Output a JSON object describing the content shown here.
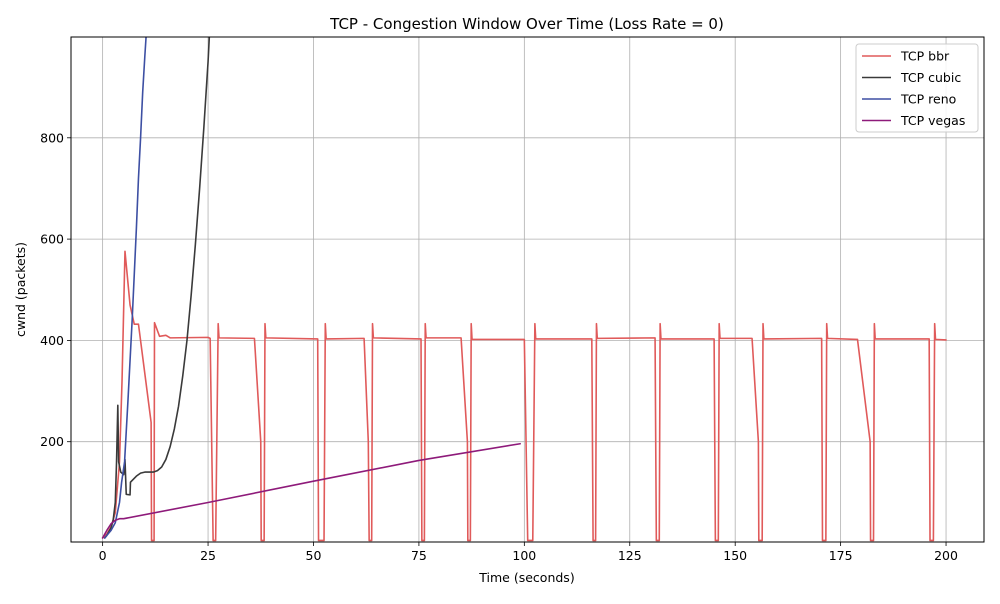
{
  "chart_data": {
    "type": "line",
    "title": "TCP - Congestion Window Over Time (Loss Rate = 0)",
    "xlabel": "Time (seconds)",
    "ylabel": "cwnd (packets)",
    "xlim": [
      -7.5,
      209
    ],
    "ylim": [
      2,
      999
    ],
    "x_ticks": [
      0,
      25,
      50,
      75,
      100,
      125,
      150,
      175,
      200
    ],
    "y_ticks": [
      200,
      400,
      600,
      800
    ],
    "grid": true,
    "legend": "top-right",
    "series": [
      {
        "name": "TCP bbr",
        "color": "#e05a5a",
        "points": [
          [
            0,
            10
          ],
          [
            1,
            18
          ],
          [
            2,
            32
          ],
          [
            3,
            60
          ],
          [
            4,
            160
          ],
          [
            4.6,
            320
          ],
          [
            5.3,
            576
          ],
          [
            6.5,
            470
          ],
          [
            7.5,
            432
          ],
          [
            8.5,
            432
          ],
          [
            11.5,
            238
          ],
          [
            11.6,
            5
          ],
          [
            12.2,
            5
          ],
          [
            12.3,
            435
          ],
          [
            13.5,
            408
          ],
          [
            15,
            410
          ],
          [
            16,
            405
          ],
          [
            25,
            406
          ],
          [
            25.5,
            404
          ],
          [
            26.2,
            5
          ],
          [
            26.8,
            5
          ],
          [
            27.4,
            433
          ],
          [
            27.6,
            405
          ],
          [
            36,
            404
          ],
          [
            37.5,
            200
          ],
          [
            37.6,
            5
          ],
          [
            38.3,
            5
          ],
          [
            38.5,
            433
          ],
          [
            38.7,
            405
          ],
          [
            51,
            403
          ],
          [
            51.2,
            5
          ],
          [
            52.5,
            5
          ],
          [
            52.8,
            433
          ],
          [
            53,
            403
          ],
          [
            62,
            404
          ],
          [
            63,
            200
          ],
          [
            63.2,
            5
          ],
          [
            63.8,
            5
          ],
          [
            64,
            433
          ],
          [
            64.2,
            405
          ],
          [
            75.5,
            403
          ],
          [
            75.7,
            5
          ],
          [
            76.3,
            5
          ],
          [
            76.5,
            433
          ],
          [
            76.7,
            405
          ],
          [
            85,
            405
          ],
          [
            86.5,
            200
          ],
          [
            86.6,
            5
          ],
          [
            87.2,
            5
          ],
          [
            87.4,
            433
          ],
          [
            87.6,
            402
          ],
          [
            100,
            402
          ],
          [
            100.8,
            5
          ],
          [
            102,
            5
          ],
          [
            102.5,
            433
          ],
          [
            102.7,
            403
          ],
          [
            116,
            403
          ],
          [
            116.3,
            5
          ],
          [
            116.9,
            5
          ],
          [
            117.1,
            433
          ],
          [
            117.3,
            404
          ],
          [
            131,
            405
          ],
          [
            131.3,
            5
          ],
          [
            132,
            5
          ],
          [
            132.2,
            433
          ],
          [
            132.4,
            403
          ],
          [
            145,
            403
          ],
          [
            145.3,
            5
          ],
          [
            146,
            5
          ],
          [
            146.2,
            433
          ],
          [
            146.4,
            404
          ],
          [
            154,
            404
          ],
          [
            155.5,
            200
          ],
          [
            155.6,
            5
          ],
          [
            156.4,
            5
          ],
          [
            156.6,
            433
          ],
          [
            156.8,
            403
          ],
          [
            170.5,
            404
          ],
          [
            170.7,
            5
          ],
          [
            171.5,
            5
          ],
          [
            171.7,
            433
          ],
          [
            171.9,
            404
          ],
          [
            179,
            402
          ],
          [
            182,
            200
          ],
          [
            182.1,
            5
          ],
          [
            182.8,
            5
          ],
          [
            183,
            433
          ],
          [
            183.2,
            403
          ],
          [
            196,
            403
          ],
          [
            196.2,
            5
          ],
          [
            197,
            5
          ],
          [
            197.3,
            433
          ],
          [
            197.5,
            402
          ],
          [
            200,
            401
          ]
        ]
      },
      {
        "name": "TCP cubic",
        "color": "#3a3a3a",
        "points": [
          [
            0.5,
            10
          ],
          [
            1,
            15
          ],
          [
            2,
            30
          ],
          [
            2.5,
            45
          ],
          [
            3,
            80
          ],
          [
            3.3,
            160
          ],
          [
            3.6,
            272
          ],
          [
            3.8,
            160
          ],
          [
            4.3,
            140
          ],
          [
            5,
            135
          ],
          [
            5.3,
            165
          ],
          [
            5.6,
            96
          ],
          [
            6.5,
            95
          ],
          [
            6.6,
            120
          ],
          [
            8,
            132
          ],
          [
            9,
            138
          ],
          [
            10,
            140
          ],
          [
            12,
            140
          ],
          [
            13,
            143
          ],
          [
            14,
            150
          ],
          [
            15,
            165
          ],
          [
            16,
            190
          ],
          [
            17,
            225
          ],
          [
            18,
            270
          ],
          [
            19,
            330
          ],
          [
            20,
            400
          ],
          [
            21,
            490
          ],
          [
            22,
            590
          ],
          [
            23,
            700
          ],
          [
            24,
            820
          ],
          [
            25,
            950
          ],
          [
            25.3,
            999
          ]
        ]
      },
      {
        "name": "TCP reno",
        "color": "#3d4fa3",
        "points": [
          [
            0.5,
            10
          ],
          [
            1,
            15
          ],
          [
            2,
            25
          ],
          [
            3,
            40
          ],
          [
            4,
            80
          ],
          [
            4.5,
            120
          ],
          [
            5.2,
            160
          ],
          [
            5.6,
            220
          ],
          [
            6,
            280
          ],
          [
            6.5,
            360
          ],
          [
            7,
            440
          ],
          [
            7.5,
            530
          ],
          [
            8,
            620
          ],
          [
            8.5,
            720
          ],
          [
            9,
            800
          ],
          [
            9.5,
            890
          ],
          [
            10,
            960
          ],
          [
            10.3,
            999
          ]
        ]
      },
      {
        "name": "TCP vegas",
        "color": "#8e1a7a",
        "points": [
          [
            0,
            10
          ],
          [
            1,
            25
          ],
          [
            2,
            38
          ],
          [
            3,
            45
          ],
          [
            4,
            48
          ],
          [
            5,
            48
          ],
          [
            25,
            80
          ],
          [
            50,
            122
          ],
          [
            75,
            163
          ],
          [
            99,
            196
          ]
        ]
      }
    ]
  }
}
